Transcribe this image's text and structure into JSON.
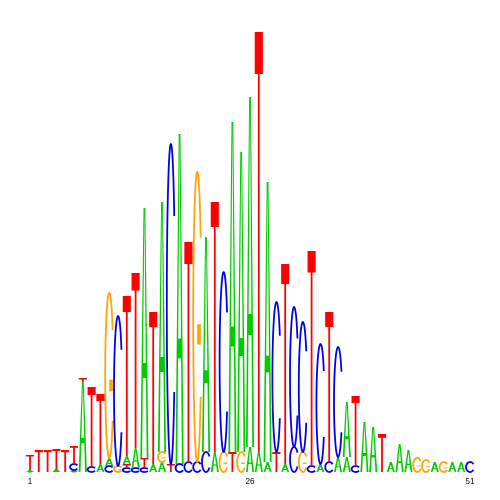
{
  "colors": {
    "A": "#00cc00",
    "C": "#0000ee",
    "G": "#ffa500",
    "T": "#ff0000"
  },
  "axis": {
    "tick_labels": [
      {
        "label": "1",
        "position": 1
      },
      {
        "label": "26",
        "position": 26
      },
      {
        "label": "51",
        "position": 51
      }
    ],
    "length": 51
  },
  "chart_data": {
    "type": "sequence-logo",
    "alphabet": [
      "A",
      "C",
      "G",
      "T"
    ],
    "positions": [
      {
        "pos": 1,
        "stack": [
          {
            "b": "A",
            "h": 2
          },
          {
            "b": "T",
            "h": 15
          }
        ]
      },
      {
        "pos": 2,
        "stack": [
          {
            "b": "T",
            "h": 22
          }
        ]
      },
      {
        "pos": 3,
        "stack": [
          {
            "b": "T",
            "h": 22
          }
        ]
      },
      {
        "pos": 4,
        "stack": [
          {
            "b": "A",
            "h": 3
          },
          {
            "b": "T",
            "h": 20
          }
        ]
      },
      {
        "pos": 5,
        "stack": [
          {
            "b": "T",
            "h": 22
          }
        ]
      },
      {
        "pos": 6,
        "stack": [
          {
            "b": "A",
            "h": 2
          },
          {
            "b": "C",
            "h": 6
          },
          {
            "b": "T",
            "h": 18
          }
        ]
      },
      {
        "pos": 7,
        "stack": [
          {
            "b": "A",
            "h": 90
          },
          {
            "b": "T",
            "h": 4
          }
        ]
      },
      {
        "pos": 8,
        "stack": [
          {
            "b": "C",
            "h": 5
          },
          {
            "b": "T",
            "h": 80
          }
        ]
      },
      {
        "pos": 9,
        "stack": [
          {
            "b": "A",
            "h": 8
          },
          {
            "b": "T",
            "h": 70
          }
        ]
      },
      {
        "pos": 10,
        "stack": [
          {
            "b": "C",
            "h": 6
          },
          {
            "b": "A",
            "h": 8
          },
          {
            "b": "G",
            "h": 165
          }
        ]
      },
      {
        "pos": 11,
        "stack": [
          {
            "b": "G",
            "h": 6
          },
          {
            "b": "C",
            "h": 150
          }
        ]
      },
      {
        "pos": 12,
        "stack": [
          {
            "b": "C",
            "h": 4
          },
          {
            "b": "T",
            "h": 4
          },
          {
            "b": "A",
            "h": 8
          },
          {
            "b": "T",
            "h": 160
          }
        ]
      },
      {
        "pos": 13,
        "stack": [
          {
            "b": "C",
            "h": 4
          },
          {
            "b": "A",
            "h": 20
          },
          {
            "b": "T",
            "h": 175
          }
        ]
      },
      {
        "pos": 14,
        "stack": [
          {
            "b": "C",
            "h": 4
          },
          {
            "b": "T",
            "h": 10
          },
          {
            "b": "A",
            "h": 250
          }
        ]
      },
      {
        "pos": 15,
        "stack": [
          {
            "b": "A",
            "h": 8
          },
          {
            "b": "T",
            "h": 152
          }
        ]
      },
      {
        "pos": 16,
        "stack": [
          {
            "b": "A",
            "h": 10
          },
          {
            "b": "G",
            "h": 10
          },
          {
            "b": "A",
            "h": 250
          }
        ]
      },
      {
        "pos": 17,
        "stack": [
          {
            "b": "T",
            "h": 8
          },
          {
            "b": "C",
            "h": 320
          }
        ]
      },
      {
        "pos": 18,
        "stack": [
          {
            "b": "C",
            "h": 8
          },
          {
            "b": "A",
            "h": 330
          }
        ]
      },
      {
        "pos": 19,
        "stack": [
          {
            "b": "C",
            "h": 10
          },
          {
            "b": "T",
            "h": 220
          }
        ]
      },
      {
        "pos": 20,
        "stack": [
          {
            "b": "C",
            "h": 10
          },
          {
            "b": "G",
            "h": 290
          }
        ]
      },
      {
        "pos": 21,
        "stack": [
          {
            "b": "C",
            "h": 20
          },
          {
            "b": "A",
            "h": 215
          }
        ]
      },
      {
        "pos": 22,
        "stack": [
          {
            "b": "A",
            "h": 20
          },
          {
            "b": "T",
            "h": 250
          }
        ]
      },
      {
        "pos": 23,
        "stack": [
          {
            "b": "G",
            "h": 20
          },
          {
            "b": "C",
            "h": 180
          }
        ]
      },
      {
        "pos": 24,
        "stack": [
          {
            "b": "T",
            "h": 20
          },
          {
            "b": "A",
            "h": 330
          }
        ]
      },
      {
        "pos": 25,
        "stack": [
          {
            "b": "G",
            "h": 20
          },
          {
            "b": "A",
            "h": 300
          }
        ]
      },
      {
        "pos": 26,
        "stack": [
          {
            "b": "A",
            "h": 25
          },
          {
            "b": "A",
            "h": 350
          }
        ]
      },
      {
        "pos": 27,
        "stack": [
          {
            "b": "A",
            "h": 20
          },
          {
            "b": "T",
            "h": 420
          }
        ]
      },
      {
        "pos": 28,
        "stack": [
          {
            "b": "A",
            "h": 10
          },
          {
            "b": "A",
            "h": 280
          }
        ]
      },
      {
        "pos": 29,
        "stack": [
          {
            "b": "T",
            "h": 20
          },
          {
            "b": "C",
            "h": 150
          }
        ]
      },
      {
        "pos": 30,
        "stack": [
          {
            "b": "A",
            "h": 8
          },
          {
            "b": "T",
            "h": 200
          }
        ]
      },
      {
        "pos": 31,
        "stack": [
          {
            "b": "C",
            "h": 25
          },
          {
            "b": "C",
            "h": 140
          }
        ]
      },
      {
        "pos": 32,
        "stack": [
          {
            "b": "G",
            "h": 20
          },
          {
            "b": "C",
            "h": 130
          }
        ]
      },
      {
        "pos": 33,
        "stack": [
          {
            "b": "C",
            "h": 6
          },
          {
            "b": "T",
            "h": 215
          }
        ]
      },
      {
        "pos": 34,
        "stack": [
          {
            "b": "A",
            "h": 8
          },
          {
            "b": "C",
            "h": 120
          }
        ]
      },
      {
        "pos": 35,
        "stack": [
          {
            "b": "C",
            "h": 10
          },
          {
            "b": "T",
            "h": 150
          }
        ]
      },
      {
        "pos": 36,
        "stack": [
          {
            "b": "A",
            "h": 15
          },
          {
            "b": "C",
            "h": 110
          }
        ]
      },
      {
        "pos": 37,
        "stack": [
          {
            "b": "A",
            "h": 15
          },
          {
            "b": "A",
            "h": 55
          }
        ]
      },
      {
        "pos": 38,
        "stack": [
          {
            "b": "C",
            "h": 6
          },
          {
            "b": "T",
            "h": 70
          }
        ]
      },
      {
        "pos": 39,
        "stack": [
          {
            "b": "A",
            "h": 50
          }
        ]
      },
      {
        "pos": 40,
        "stack": [
          {
            "b": "A",
            "h": 45
          }
        ]
      },
      {
        "pos": 41,
        "stack": [
          {
            "b": "T",
            "h": 38
          }
        ]
      },
      {
        "pos": 42,
        "stack": [
          {
            "b": "A",
            "h": 10
          }
        ]
      },
      {
        "pos": 43,
        "stack": [
          {
            "b": "A",
            "h": 28
          }
        ]
      },
      {
        "pos": 44,
        "stack": [
          {
            "b": "A",
            "h": 22
          }
        ]
      },
      {
        "pos": 45,
        "stack": [
          {
            "b": "G",
            "h": 14
          }
        ]
      },
      {
        "pos": 46,
        "stack": [
          {
            "b": "G",
            "h": 12
          }
        ]
      },
      {
        "pos": 47,
        "stack": [
          {
            "b": "A",
            "h": 10
          }
        ]
      },
      {
        "pos": 48,
        "stack": [
          {
            "b": "G",
            "h": 10
          }
        ]
      },
      {
        "pos": 49,
        "stack": [
          {
            "b": "A",
            "h": 10
          }
        ]
      },
      {
        "pos": 50,
        "stack": [
          {
            "b": "A",
            "h": 10
          }
        ]
      },
      {
        "pos": 51,
        "stack": [
          {
            "b": "C",
            "h": 10
          }
        ]
      }
    ]
  }
}
